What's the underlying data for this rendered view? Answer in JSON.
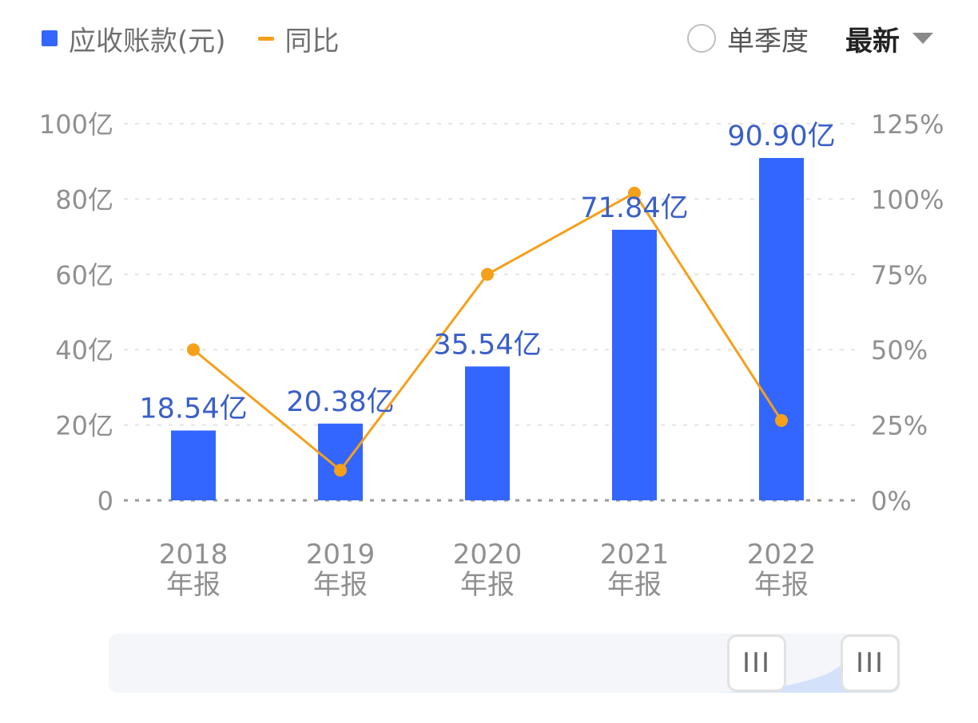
{
  "legend": {
    "bar_label": "应收账款(元)",
    "line_label": "同比"
  },
  "controls": {
    "quarter_label": "单季度",
    "sort_label": "最新"
  },
  "slider": {
    "left_handle_glyph": "III",
    "right_handle_glyph": "III"
  },
  "colors": {
    "bar": "#3366ff",
    "line": "#f5a01b",
    "bar_label": "#3a5fc8",
    "axis_text": "#909090",
    "grid": "#e4e4e4"
  },
  "chart_data": {
    "type": "bar",
    "categories": [
      "2018\n年报",
      "2019\n年报",
      "2020\n年报",
      "2021\n年报",
      "2022\n年报"
    ],
    "series": [
      {
        "name": "应收账款(元)",
        "type": "bar",
        "axis": "left",
        "values": [
          18.54,
          20.38,
          35.54,
          71.84,
          90.9
        ],
        "labels": [
          "18.54亿",
          "20.38亿",
          "35.54亿",
          "71.84亿",
          "90.90亿"
        ]
      },
      {
        "name": "同比",
        "type": "line",
        "axis": "right",
        "values": [
          50,
          10,
          75,
          102,
          26.5
        ]
      }
    ],
    "y_left": {
      "lim": [
        0,
        100
      ],
      "ticks": [
        "0",
        "20亿",
        "40亿",
        "60亿",
        "80亿",
        "100亿"
      ]
    },
    "y_right": {
      "lim": [
        0,
        125
      ],
      "ticks": [
        "0%",
        "25%",
        "50%",
        "75%",
        "100%",
        "125%"
      ]
    },
    "grid": true,
    "legend_position": "top-left"
  }
}
